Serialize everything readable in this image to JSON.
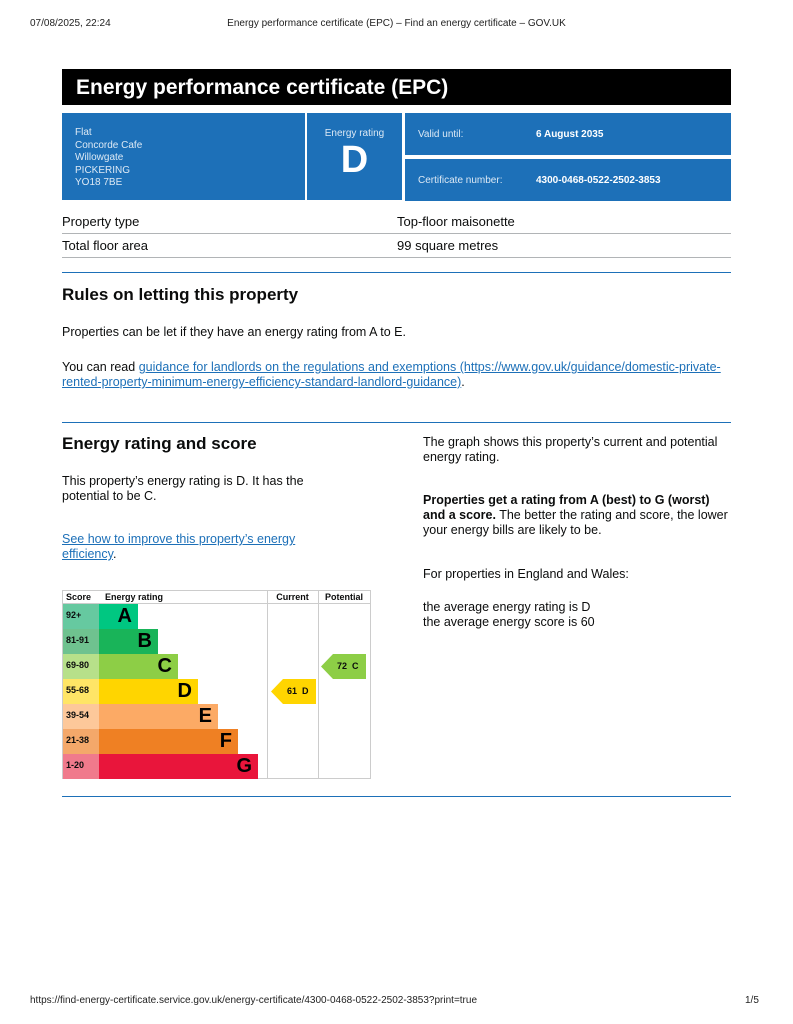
{
  "browser": {
    "date": "07/08/2025, 22:24",
    "title": "Energy performance certificate (EPC) – Find an energy certificate – GOV.UK",
    "url": "https://find-energy-certificate.service.gov.uk/energy-certificate/4300-0468-0522-2502-3853?print=true",
    "page": "1/5"
  },
  "banner": "Energy performance certificate (EPC)",
  "address": [
    "Flat",
    "Concorde Cafe",
    "Willowgate",
    "PICKERING",
    "YO18 7BE"
  ],
  "rating": {
    "label": "Energy rating",
    "value": "D"
  },
  "valid": {
    "label": "Valid until:",
    "value": "6 August 2035"
  },
  "cert": {
    "label": "Certificate number:",
    "value": "4300-0468-0522-2502-3853"
  },
  "props": [
    {
      "k": "Property type",
      "v": "Top-floor maisonette"
    },
    {
      "k": "Total floor area",
      "v": "99 square metres"
    }
  ],
  "rules": {
    "title": "Rules on letting this property",
    "p1": "Properties can be let if they have an energy rating from A to E.",
    "p2_pre": "You can read ",
    "link": "guidance for landlords on the regulations and exemptions (https://www.gov.uk/guidance/domestic-private-rented-property-minimum-energy-efficiency-standard-landlord-guidance)",
    "p2_post": "."
  },
  "score": {
    "title": "Energy rating and score",
    "p1": "This property’s energy rating is D. It has the potential to be C.",
    "link": "See how to improve this property’s energy efficiency",
    "link_post": ".",
    "r1": "The graph shows this property’s current and potential energy rating.",
    "r2_bold": "Properties get a rating from A (best) to G (worst) and a score.",
    "r2": " The better the rating and score, the lower your energy bills are likely to be.",
    "r3": "For properties in England and Wales:",
    "r4": "the average energy rating is D",
    "r5": "the average energy score is 60"
  },
  "chart_data": {
    "type": "table",
    "headers": [
      "Score",
      "Energy rating",
      "Current",
      "Potential"
    ],
    "bands": [
      {
        "score": "92+",
        "letter": "A",
        "color": "#00c781",
        "light": "#66c9a0"
      },
      {
        "score": "81-91",
        "letter": "B",
        "color": "#19b459",
        "light": "#6fc28f"
      },
      {
        "score": "69-80",
        "letter": "C",
        "color": "#8dce46",
        "light": "#b7e08a"
      },
      {
        "score": "55-68",
        "letter": "D",
        "color": "#ffd500",
        "light": "#ffe566"
      },
      {
        "score": "39-54",
        "letter": "E",
        "color": "#fcaa65",
        "light": "#fdc89a"
      },
      {
        "score": "21-38",
        "letter": "F",
        "color": "#ef8023",
        "light": "#f4a86a"
      },
      {
        "score": "1-20",
        "letter": "G",
        "color": "#e9153b",
        "light": "#f07a8c"
      }
    ],
    "current": {
      "score": "61",
      "letter": "D",
      "label": "61  D",
      "color": "#ffd500"
    },
    "potential": {
      "score": "72",
      "letter": "C",
      "label": "72  C",
      "color": "#8dce46"
    }
  }
}
